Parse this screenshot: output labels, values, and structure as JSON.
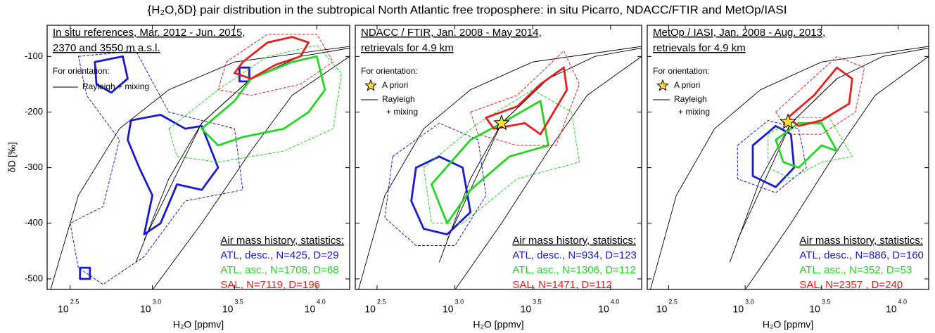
{
  "title": "{H₂O,δD} pair distribution in the subtropical North Atlantic free troposphere: in situ Picarro, NDACC/FTIR and MetOp/IASI",
  "rayleigh_lines": [
    {
      "x": [
        2.38,
        2.55,
        2.8,
        3.1,
        3.5,
        4.2
      ],
      "y": [
        -520,
        -350,
        -230,
        -160,
        -110,
        -82
      ]
    },
    {
      "x": [
        2.9,
        3.1,
        3.3,
        3.6,
        3.9,
        4.2
      ],
      "y": [
        -470,
        -320,
        -220,
        -140,
        -100,
        -85
      ]
    },
    {
      "x": [
        3.0,
        3.3,
        3.6,
        3.85,
        4.2
      ],
      "y": [
        -520,
        -400,
        -270,
        -170,
        -100
      ]
    },
    {
      "x": [
        2.95,
        3.3,
        3.6
      ],
      "y": [
        -430,
        -220,
        -140
      ]
    }
  ],
  "chart_data": [
    {
      "type": "contour",
      "header": [
        "In situ references, Mar. 2012 - Jun. 2015,",
        "2370 and 3550 m a.s.l."
      ],
      "orientation_title": "For orientation:",
      "rayleigh_label": [
        "Rayleigh + mixing"
      ],
      "stats_title": "Air mass history, statistics:",
      "stats": [
        {
          "text": "ATL, desc., N=425, D=29",
          "color": "#1a1ad6"
        },
        {
          "text": "ATL, asc., N=1708, D=68",
          "color": "#22d822"
        },
        {
          "text": "SAL, N=7119, D=196",
          "color": "#e62020"
        }
      ],
      "x_label": "H₂O [ppmv]",
      "y_label": "δD [‰]",
      "log_base_label": "10",
      "xlim": [
        2.36,
        4.2
      ],
      "ylim": [
        -519,
        -44
      ],
      "xticks": [
        {
          "value": 2.5,
          "label": "2.5"
        },
        {
          "value": 3,
          "label": "3.0"
        },
        {
          "value": 3.5,
          "label": "3.5"
        },
        {
          "value": 4,
          "label": "4.0"
        }
      ],
      "yticks": [
        -100,
        -200,
        -300,
        -400,
        -500
      ],
      "contours": [
        {
          "color": "#1a1ad6",
          "style": "dashed",
          "x": [
            2.55,
            2.9,
            3.1,
            3.5,
            3.55,
            3.2,
            2.95,
            2.7,
            2.55,
            2.5,
            2.7,
            2.8,
            2.6
          ],
          "y": [
            -100,
            -90,
            -200,
            -230,
            -340,
            -360,
            -460,
            -510,
            -480,
            -400,
            -370,
            -250,
            -170
          ]
        },
        {
          "color": "#1a1ad6",
          "style": "solid",
          "x": [
            2.87,
            3.05,
            3.2,
            3.3,
            3.4,
            3.3,
            3.15,
            3.05,
            2.95,
            3.0,
            2.92,
            2.85
          ],
          "y": [
            -215,
            -205,
            -230,
            -225,
            -300,
            -340,
            -330,
            -400,
            -420,
            -350,
            -300,
            -250
          ]
        },
        {
          "color": "#1a1ad6",
          "style": "solid",
          "x": [
            2.65,
            2.82,
            2.85,
            2.75,
            2.66
          ],
          "y": [
            -110,
            -100,
            -140,
            -165,
            -150
          ]
        },
        {
          "color": "#1a1ad6",
          "style": "solid",
          "x": [
            2.56,
            2.62,
            2.62,
            2.56
          ],
          "y": [
            -480,
            -480,
            -500,
            -500
          ]
        },
        {
          "color": "#1a1ad6",
          "style": "solid",
          "x": [
            3.53,
            3.59,
            3.59,
            3.53
          ],
          "y": [
            -120,
            -120,
            -145,
            -145
          ]
        },
        {
          "color": "#22d822",
          "style": "dashed",
          "x": [
            3.1,
            3.4,
            3.7,
            4.0,
            4.15,
            4.1,
            3.8,
            3.4,
            3.15
          ],
          "y": [
            -230,
            -160,
            -100,
            -80,
            -130,
            -230,
            -270,
            -290,
            -280
          ]
        },
        {
          "color": "#22d822",
          "style": "solid",
          "x": [
            3.3,
            3.5,
            3.6,
            3.85,
            4.0,
            4.05,
            3.95,
            3.8,
            3.55,
            3.4
          ],
          "y": [
            -230,
            -180,
            -140,
            -110,
            -100,
            -160,
            -200,
            -230,
            -245,
            -260
          ]
        },
        {
          "color": "#e62020",
          "style": "dashed",
          "x": [
            3.45,
            3.7,
            4.0,
            4.1,
            3.9,
            3.6,
            3.4
          ],
          "y": [
            -110,
            -60,
            -60,
            -110,
            -150,
            -170,
            -160
          ]
        },
        {
          "color": "#e62020",
          "style": "solid",
          "x": [
            3.55,
            3.7,
            3.85,
            3.95,
            3.9,
            3.75,
            3.6,
            3.5
          ],
          "y": [
            -110,
            -75,
            -65,
            -75,
            -100,
            -115,
            -140,
            -130
          ]
        }
      ]
    },
    {
      "type": "contour",
      "header": [
        "NDACC / FTIR, Jan. 2008 - May 2014,",
        "retrievals for 4.9 km"
      ],
      "orientation_title": "For orientation:",
      "apriori_label": "A priori",
      "apriori": {
        "x": 3.3,
        "y": -220
      },
      "rayleigh_label": [
        "Rayleigh",
        "+ mixing"
      ],
      "stats_title": "Air mass history, statistics:",
      "stats": [
        {
          "text": "ATL, desc., N=934, D=123",
          "color": "#1a1ad6"
        },
        {
          "text": "ATL, asc., N=1306, D=112",
          "color": "#22d822"
        },
        {
          "text": "SAL, N=1471, D=112",
          "color": "#e62020"
        }
      ],
      "x_label": "H₂O [ppmv]",
      "log_base_label": "10",
      "xlim": [
        2.36,
        4.2
      ],
      "ylim": [
        -519,
        -44
      ],
      "xticks": [
        {
          "value": 2.5,
          "label": "2.5"
        },
        {
          "value": 3,
          "label": "3.0"
        },
        {
          "value": 3.5,
          "label": "3.5"
        },
        {
          "value": 4,
          "label": "4.0"
        }
      ],
      "yticks": [
        -100,
        -200,
        -300,
        -400,
        -500
      ],
      "contours": [
        {
          "color": "#1a1ad6",
          "style": "dashed",
          "x": [
            2.6,
            2.9,
            3.15,
            3.2,
            3.0,
            2.75,
            2.55
          ],
          "y": [
            -280,
            -220,
            -250,
            -350,
            -440,
            -440,
            -390
          ]
        },
        {
          "color": "#1a1ad6",
          "style": "solid",
          "x": [
            2.75,
            2.9,
            3.05,
            3.1,
            2.95,
            2.8,
            2.72
          ],
          "y": [
            -300,
            -280,
            -300,
            -380,
            -420,
            -410,
            -360
          ]
        },
        {
          "color": "#22d822",
          "style": "dashed",
          "x": [
            2.8,
            3.15,
            3.5,
            3.75,
            3.8,
            3.4,
            3.05,
            2.85
          ],
          "y": [
            -300,
            -220,
            -160,
            -200,
            -290,
            -320,
            -400,
            -400
          ]
        },
        {
          "color": "#22d822",
          "style": "solid",
          "x": [
            2.85,
            3.1,
            3.3,
            3.55,
            3.6,
            3.35,
            3.1,
            2.95
          ],
          "y": [
            -330,
            -250,
            -220,
            -180,
            -260,
            -280,
            -340,
            -400
          ]
        },
        {
          "color": "#e62020",
          "style": "dashed",
          "x": [
            3.1,
            3.4,
            3.7,
            3.8,
            3.65,
            3.4,
            3.15
          ],
          "y": [
            -200,
            -170,
            -90,
            -150,
            -260,
            -260,
            -240
          ]
        },
        {
          "color": "#e62020",
          "style": "solid",
          "x": [
            3.2,
            3.4,
            3.55,
            3.7,
            3.72,
            3.55,
            3.45,
            3.25
          ],
          "y": [
            -210,
            -190,
            -150,
            -120,
            -160,
            -240,
            -220,
            -230
          ]
        }
      ]
    },
    {
      "type": "contour",
      "header": [
        "MetOp / IASI, Jan. 2008 - Aug. 2013,",
        "retrievals for 4.9 km"
      ],
      "orientation_title": "For orientation:",
      "apriori_label": "A priori",
      "apriori": {
        "x": 3.28,
        "y": -218
      },
      "rayleigh_label": [
        "Rayleigh",
        "+ mixing"
      ],
      "stats_title": "Air mass history, statistics:",
      "stats": [
        {
          "text": "ATL, desc., N=886, D=160",
          "color": "#1a1ad6"
        },
        {
          "text": "ATL, asc., N=352, D=53",
          "color": "#22d822"
        },
        {
          "text": "SAL, N=2357 , D=240",
          "color": "#e62020"
        }
      ],
      "x_label": "H₂O [ppmv]",
      "log_base_label": "10",
      "xlim": [
        2.36,
        4.2
      ],
      "ylim": [
        -519,
        -44
      ],
      "xticks": [
        {
          "value": 2.5,
          "label": "2.5"
        },
        {
          "value": 3,
          "label": "3.0"
        },
        {
          "value": 3.5,
          "label": "3.5"
        },
        {
          "value": 4,
          "label": "4.0"
        }
      ],
      "yticks": [
        -100,
        -200,
        -300,
        -400,
        -500
      ],
      "contours": [
        {
          "color": "#1a1ad6",
          "style": "dashed",
          "x": [
            2.95,
            3.15,
            3.35,
            3.4,
            3.2,
            2.95
          ],
          "y": [
            -260,
            -215,
            -230,
            -300,
            -345,
            -320
          ]
        },
        {
          "color": "#1a1ad6",
          "style": "solid",
          "x": [
            3.05,
            3.2,
            3.3,
            3.32,
            3.2,
            3.05
          ],
          "y": [
            -260,
            -225,
            -240,
            -300,
            -335,
            -315
          ]
        },
        {
          "color": "#22d822",
          "style": "dashed",
          "x": [
            3.15,
            3.35,
            3.55,
            3.7,
            3.5,
            3.3,
            3.15
          ],
          "y": [
            -240,
            -210,
            -210,
            -280,
            -290,
            -320,
            -300
          ]
        },
        {
          "color": "#22d822",
          "style": "solid",
          "x": [
            3.2,
            3.35,
            3.5,
            3.6,
            3.5,
            3.35,
            3.25
          ],
          "y": [
            -250,
            -220,
            -220,
            -270,
            -260,
            -300,
            -290
          ]
        },
        {
          "color": "#e62020",
          "style": "dashed",
          "x": [
            3.2,
            3.4,
            3.6,
            3.78,
            3.72,
            3.5,
            3.3
          ],
          "y": [
            -200,
            -150,
            -100,
            -120,
            -200,
            -240,
            -240
          ]
        },
        {
          "color": "#e62020",
          "style": "solid",
          "x": [
            3.28,
            3.45,
            3.6,
            3.7,
            3.68,
            3.5,
            3.35
          ],
          "y": [
            -210,
            -170,
            -120,
            -140,
            -185,
            -215,
            -225
          ]
        }
      ]
    }
  ]
}
